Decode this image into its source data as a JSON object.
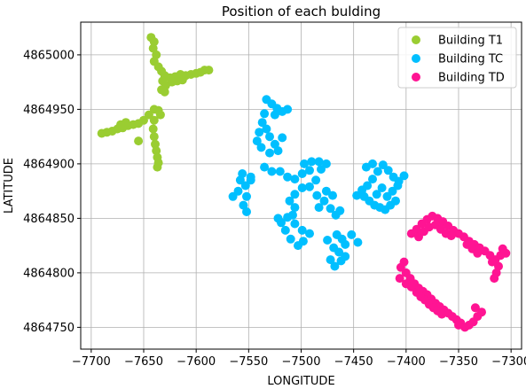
{
  "chart_data": {
    "type": "scatter",
    "title": "Position of each bulding",
    "xlabel": "LONGITUDE",
    "ylabel": "LATITUDE",
    "xlim": [
      -7710,
      -7290
    ],
    "ylim": [
      4864730,
      4865030
    ],
    "xticks": [
      -7700,
      -7650,
      -7600,
      -7550,
      -7500,
      -7450,
      -7400,
      -7350,
      -7300
    ],
    "yticks": [
      4864750,
      4864800,
      4864850,
      4864900,
      4864950,
      4865000
    ],
    "grid": true,
    "legend_position": "top-right",
    "series": [
      {
        "name": "Building T1",
        "color": "#9acd32",
        "points": [
          [
            -7643,
            4865016
          ],
          [
            -7640,
            4865012
          ],
          [
            -7641,
            4865006
          ],
          [
            -7638,
            4865000
          ],
          [
            -7640,
            4864994
          ],
          [
            -7636,
            4864989
          ],
          [
            -7633,
            4864985
          ],
          [
            -7630,
            4864981
          ],
          [
            -7632,
            4864976
          ],
          [
            -7629,
            4864972
          ],
          [
            -7633,
            4864968
          ],
          [
            -7630,
            4864966
          ],
          [
            -7625,
            4864979
          ],
          [
            -7620,
            4864980
          ],
          [
            -7615,
            4864982
          ],
          [
            -7610,
            4864981
          ],
          [
            -7605,
            4864982
          ],
          [
            -7600,
            4864983
          ],
          [
            -7596,
            4864984
          ],
          [
            -7592,
            4864986
          ],
          [
            -7588,
            4864986
          ],
          [
            -7613,
            4864977
          ],
          [
            -7618,
            4864976
          ],
          [
            -7623,
            4864975
          ],
          [
            -7640,
            4864950
          ],
          [
            -7645,
            4864945
          ],
          [
            -7650,
            4864940
          ],
          [
            -7655,
            4864937
          ],
          [
            -7660,
            4864936
          ],
          [
            -7665,
            4864935
          ],
          [
            -7670,
            4864933
          ],
          [
            -7675,
            4864932
          ],
          [
            -7680,
            4864930
          ],
          [
            -7685,
            4864929
          ],
          [
            -7690,
            4864928
          ],
          [
            -7667,
            4864938
          ],
          [
            -7672,
            4864936
          ],
          [
            -7636,
            4864949
          ],
          [
            -7640,
            4864940
          ],
          [
            -7641,
            4864932
          ],
          [
            -7640,
            4864925
          ],
          [
            -7639,
            4864918
          ],
          [
            -7638,
            4864912
          ],
          [
            -7637,
            4864906
          ],
          [
            -7636,
            4864901
          ],
          [
            -7637,
            4864897
          ],
          [
            -7655,
            4864921
          ],
          [
            -7634,
            4864945
          ]
        ]
      },
      {
        "name": "Building TC",
        "color": "#00bfff",
        "points": [
          [
            -7533,
            4864959
          ],
          [
            -7528,
            4864955
          ],
          [
            -7523,
            4864951
          ],
          [
            -7518,
            4864948
          ],
          [
            -7513,
            4864950
          ],
          [
            -7525,
            4864945
          ],
          [
            -7535,
            4864946
          ],
          [
            -7537,
            4864938
          ],
          [
            -7533,
            4864932
          ],
          [
            -7530,
            4864925
          ],
          [
            -7525,
            4864918
          ],
          [
            -7522,
            4864912
          ],
          [
            -7518,
            4864924
          ],
          [
            -7540,
            4864929
          ],
          [
            -7542,
            4864921
          ],
          [
            -7538,
            4864915
          ],
          [
            -7530,
            4864910
          ],
          [
            -7520,
            4864893
          ],
          [
            -7513,
            4864888
          ],
          [
            -7506,
            4864886
          ],
          [
            -7499,
            4864891
          ],
          [
            -7492,
            4864894
          ],
          [
            -7497,
            4864900
          ],
          [
            -7490,
            4864902
          ],
          [
            -7483,
            4864902
          ],
          [
            -7476,
            4864900
          ],
          [
            -7481,
            4864895
          ],
          [
            -7486,
            4864885
          ],
          [
            -7492,
            4864879
          ],
          [
            -7499,
            4864878
          ],
          [
            -7506,
            4864872
          ],
          [
            -7511,
            4864866
          ],
          [
            -7506,
            4864860
          ],
          [
            -7535,
            4864897
          ],
          [
            -7528,
            4864893
          ],
          [
            -7548,
            4864885
          ],
          [
            -7553,
            4864880
          ],
          [
            -7558,
            4864885
          ],
          [
            -7556,
            4864891
          ],
          [
            -7560,
            4864875
          ],
          [
            -7565,
            4864870
          ],
          [
            -7552,
            4864870
          ],
          [
            -7555,
            4864862
          ],
          [
            -7552,
            4864856
          ],
          [
            -7548,
            4864888
          ],
          [
            -7519,
            4864846
          ],
          [
            -7513,
            4864851
          ],
          [
            -7506,
            4864845
          ],
          [
            -7499,
            4864839
          ],
          [
            -7492,
            4864836
          ],
          [
            -7498,
            4864829
          ],
          [
            -7503,
            4864825
          ],
          [
            -7510,
            4864831
          ],
          [
            -7515,
            4864839
          ],
          [
            -7522,
            4864850
          ],
          [
            -7508,
            4864853
          ],
          [
            -7485,
            4864871
          ],
          [
            -7478,
            4864866
          ],
          [
            -7472,
            4864859
          ],
          [
            -7467,
            4864853
          ],
          [
            -7463,
            4864857
          ],
          [
            -7470,
            4864871
          ],
          [
            -7476,
            4864875
          ],
          [
            -7483,
            4864860
          ],
          [
            -7466,
            4864835
          ],
          [
            -7461,
            4864831
          ],
          [
            -7458,
            4864826
          ],
          [
            -7464,
            4864819
          ],
          [
            -7469,
            4864823
          ],
          [
            -7472,
            4864812
          ],
          [
            -7468,
            4864806
          ],
          [
            -7462,
            4864811
          ],
          [
            -7458,
            4864815
          ],
          [
            -7446,
            4864828
          ],
          [
            -7452,
            4864835
          ],
          [
            -7475,
            4864830
          ],
          [
            -7447,
            4864871
          ],
          [
            -7442,
            4864876
          ],
          [
            -7437,
            4864880
          ],
          [
            -7432,
            4864886
          ],
          [
            -7427,
            4864893
          ],
          [
            -7422,
            4864899
          ],
          [
            -7417,
            4864894
          ],
          [
            -7412,
            4864888
          ],
          [
            -7407,
            4864884
          ],
          [
            -7402,
            4864889
          ],
          [
            -7432,
            4864900
          ],
          [
            -7438,
            4864897
          ],
          [
            -7440,
            4864870
          ],
          [
            -7435,
            4864866
          ],
          [
            -7430,
            4864862
          ],
          [
            -7425,
            4864860
          ],
          [
            -7420,
            4864858
          ],
          [
            -7415,
            4864862
          ],
          [
            -7418,
            4864870
          ],
          [
            -7413,
            4864875
          ],
          [
            -7408,
            4864880
          ],
          [
            -7423,
            4864878
          ],
          [
            -7428,
            4864872
          ],
          [
            -7410,
            4864866
          ]
        ]
      },
      {
        "name": "Building TD",
        "color": "#ff1493",
        "points": [
          [
            -7395,
            4864836
          ],
          [
            -7390,
            4864840
          ],
          [
            -7385,
            4864845
          ],
          [
            -7380,
            4864849
          ],
          [
            -7375,
            4864852
          ],
          [
            -7370,
            4864850
          ],
          [
            -7365,
            4864847
          ],
          [
            -7360,
            4864843
          ],
          [
            -7355,
            4864839
          ],
          [
            -7350,
            4864836
          ],
          [
            -7345,
            4864833
          ],
          [
            -7340,
            4864829
          ],
          [
            -7335,
            4864826
          ],
          [
            -7330,
            4864823
          ],
          [
            -7325,
            4864820
          ],
          [
            -7320,
            4864816
          ],
          [
            -7315,
            4864812
          ],
          [
            -7388,
            4864833
          ],
          [
            -7383,
            4864838
          ],
          [
            -7378,
            4864842
          ],
          [
            -7372,
            4864844
          ],
          [
            -7367,
            4864840
          ],
          [
            -7362,
            4864836
          ],
          [
            -7357,
            4864834
          ],
          [
            -7342,
            4864826
          ],
          [
            -7337,
            4864822
          ],
          [
            -7332,
            4864818
          ],
          [
            -7310,
            4864816
          ],
          [
            -7305,
            4864818
          ],
          [
            -7308,
            4864822
          ],
          [
            -7312,
            4864806
          ],
          [
            -7314,
            4864800
          ],
          [
            -7316,
            4864795
          ],
          [
            -7318,
            4864810
          ],
          [
            -7405,
            4864805
          ],
          [
            -7402,
            4864810
          ],
          [
            -7400,
            4864800
          ],
          [
            -7396,
            4864795
          ],
          [
            -7392,
            4864790
          ],
          [
            -7388,
            4864786
          ],
          [
            -7384,
            4864783
          ],
          [
            -7380,
            4864780
          ],
          [
            -7376,
            4864776
          ],
          [
            -7372,
            4864772
          ],
          [
            -7368,
            4864769
          ],
          [
            -7364,
            4864766
          ],
          [
            -7360,
            4864763
          ],
          [
            -7356,
            4864760
          ],
          [
            -7352,
            4864757
          ],
          [
            -7348,
            4864754
          ],
          [
            -7344,
            4864750
          ],
          [
            -7340,
            4864752
          ],
          [
            -7336,
            4864755
          ],
          [
            -7332,
            4864760
          ],
          [
            -7328,
            4864764
          ],
          [
            -7334,
            4864768
          ],
          [
            -7406,
            4864795
          ],
          [
            -7400,
            4864790
          ],
          [
            -7395,
            4864787
          ],
          [
            -7390,
            4864782
          ],
          [
            -7386,
            4864778
          ],
          [
            -7382,
            4864775
          ],
          [
            -7378,
            4864771
          ],
          [
            -7374,
            4864768
          ],
          [
            -7370,
            4864765
          ],
          [
            -7366,
            4864762
          ],
          [
            -7350,
            4864752
          ]
        ]
      }
    ]
  }
}
